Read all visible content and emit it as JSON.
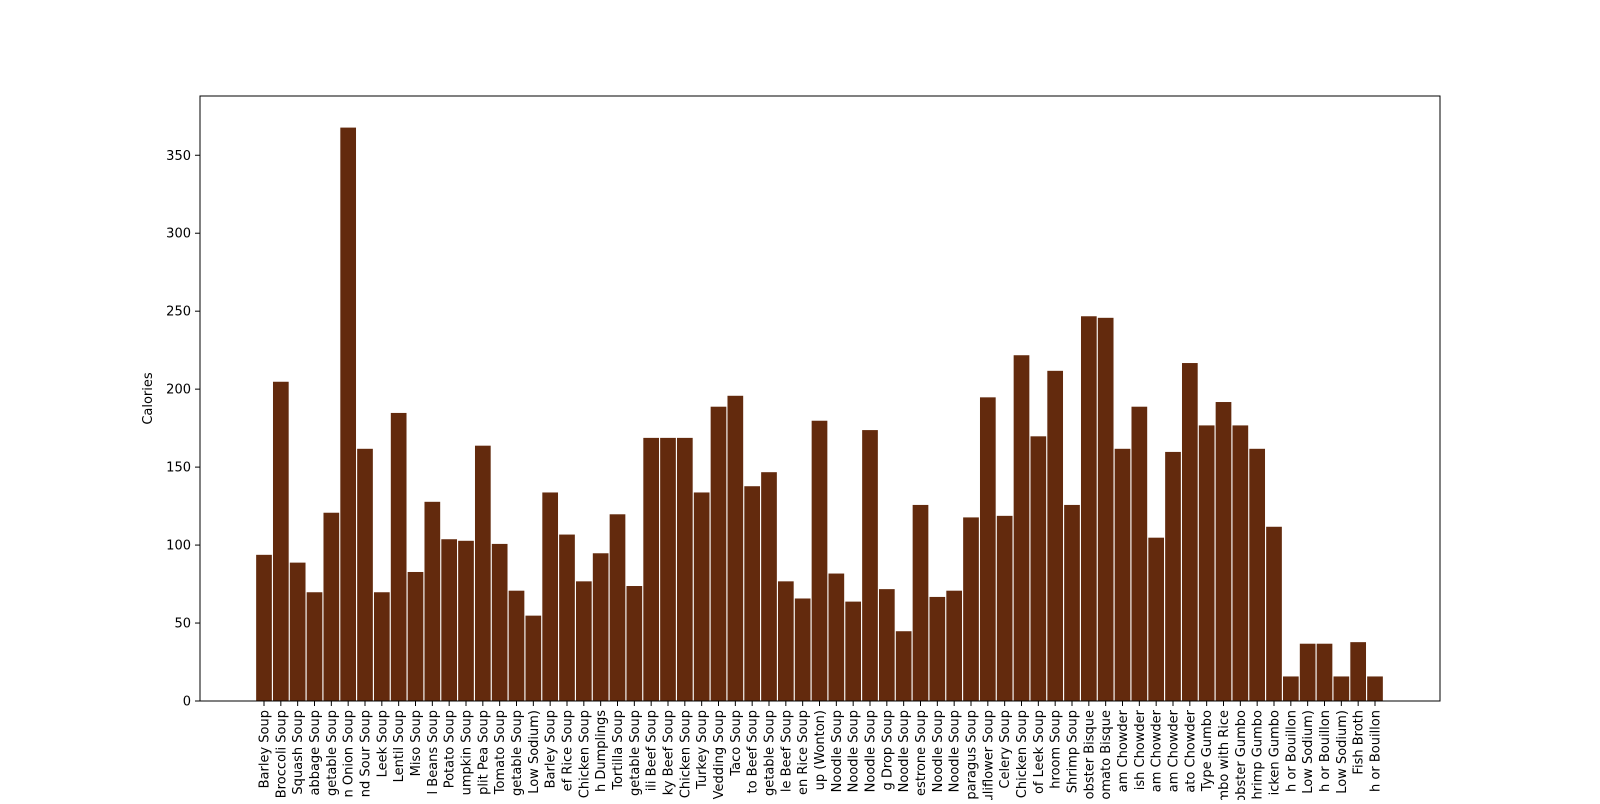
{
  "chart_data": {
    "type": "bar",
    "title": "",
    "xlabel": "",
    "ylabel": "Calories",
    "ylim": [
      0,
      388
    ],
    "yticks": [
      0,
      50,
      100,
      150,
      200,
      250,
      300,
      350
    ],
    "grid": false,
    "bar_color": "#632a0d",
    "bar_edge_color": "#ffffff",
    "categories": [
      "Barley Soup",
      "Broccoli Soup",
      "Squash Soup",
      "abbage Soup",
      "getable Soup",
      "n Onion Soup",
      "nd Sour Soup",
      "Leek Soup",
      "Lentil Soup",
      "Miso Soup",
      "l Beans Soup",
      "Potato Soup",
      "umpkin Soup",
      "plit Pea Soup",
      "Tomato Soup",
      "getable Soup",
      "Low Sodium)",
      "Barley Soup",
      "ef Rice Soup",
      "Chicken Soup",
      "h Dumplings",
      "Tortilla Soup",
      "getable Soup",
      "ili Beef Soup",
      "ky Beef Soup",
      "Chicken Soup",
      "Turkey Soup",
      "Vedding Soup",
      "Taco Soup",
      "to Beef Soup",
      "getable Soup",
      "le Beef Soup",
      "en Rice Soup",
      "up (Wonton)",
      "Noodle Soup",
      "Noodle Soup",
      "Noodle Soup",
      "g Drop Soup",
      "Noodle Soup",
      "estrone Soup",
      "Noodle Soup",
      "Noodle Soup",
      "paragus Soup",
      "uliflower Soup",
      "Celery Soup",
      "Chicken Soup",
      "of Leek Soup",
      "hroom Soup",
      "Shrimp Soup",
      "obster Bisque",
      "omato Bisque",
      "am Chowder",
      "ish Chowder",
      "am Chowder",
      "am Chowder",
      "ato Chowder",
      "Type Gumbo",
      "mbo with Rice",
      "obster Gumbo",
      "hrimp Gumbo",
      "icken Gumbo",
      "h or Bouillon",
      "Low Sodium)",
      "h or Bouillon",
      "Low Sodium)",
      "Fish Broth",
      "h or Bouillon"
    ],
    "values": [
      94,
      205,
      89,
      70,
      121,
      368,
      162,
      70,
      185,
      83,
      128,
      104,
      103,
      164,
      101,
      71,
      55,
      134,
      107,
      77,
      95,
      120,
      74,
      169,
      169,
      169,
      134,
      189,
      196,
      138,
      147,
      77,
      66,
      180,
      82,
      64,
      174,
      72,
      45,
      126,
      67,
      71,
      118,
      195,
      119,
      222,
      170,
      212,
      126,
      247,
      246,
      162,
      189,
      105,
      160,
      217,
      177,
      192,
      177,
      162,
      112,
      16,
      37,
      37,
      16,
      38,
      16
    ]
  }
}
